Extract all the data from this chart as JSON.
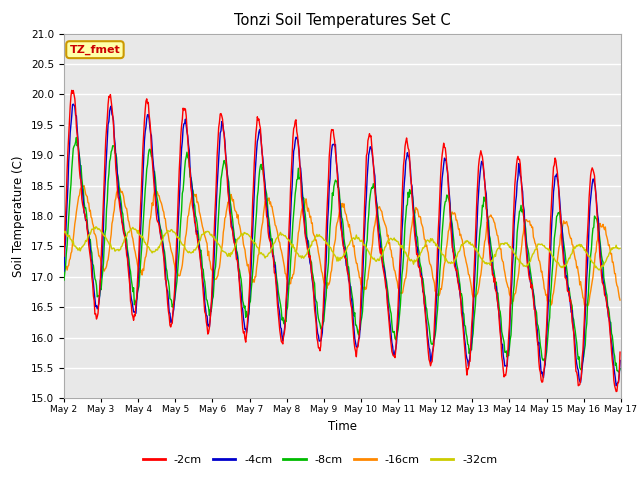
{
  "title": "Tonzi Soil Temperatures Set C",
  "xlabel": "Time",
  "ylabel": "Soil Temperature (C)",
  "ylim": [
    15.0,
    21.0
  ],
  "yticks": [
    15.0,
    15.5,
    16.0,
    16.5,
    17.0,
    17.5,
    18.0,
    18.5,
    19.0,
    19.5,
    20.0,
    20.5,
    21.0
  ],
  "series_labels": [
    "-2cm",
    "-4cm",
    "-8cm",
    "-16cm",
    "-32cm"
  ],
  "series_colors": [
    "#ff0000",
    "#0000cc",
    "#00bb00",
    "#ff8800",
    "#cccc00"
  ],
  "annotation_text": "TZ_fmet",
  "annotation_bg": "#ffffaa",
  "annotation_edge": "#cc9900",
  "fig_bg_color": "#ffffff",
  "axes_bg_color": "#e8e8e8",
  "grid_color": "#ffffff",
  "x_tick_labels": [
    "May 2",
    "May 3",
    "May 4",
    "May 5",
    "May 6",
    "May 7",
    "May 8",
    "May 9",
    "May 10",
    "May 11",
    "May 12",
    "May 13",
    "May 14",
    "May 15",
    "May 16",
    "May 17"
  ],
  "n_days": 15,
  "points_per_day": 48
}
